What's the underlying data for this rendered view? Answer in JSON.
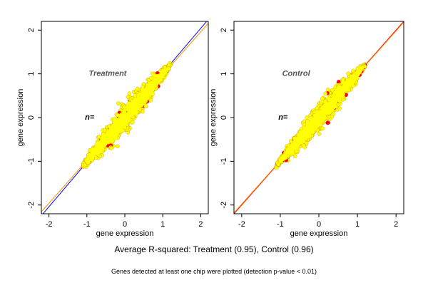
{
  "figure": {
    "main_caption": "Average R-squared: Treatment (0.95), Control (0.96)",
    "sub_caption": "Genes detected at least one chip were plotted (detection p-value < 0.01)"
  },
  "chart_data": [
    {
      "type": "scatter",
      "panel_label": "Treatment",
      "n_label": "n=",
      "xlabel": "gene expression",
      "ylabel": "gene expression",
      "xlim": [
        -2.2,
        2.2
      ],
      "ylim": [
        -2.2,
        2.2
      ],
      "x_ticks": [
        -2,
        -1,
        0,
        1,
        2
      ],
      "y_ticks": [
        -2,
        -1,
        0,
        1,
        2
      ],
      "grid": false,
      "reference_lines": [
        {
          "name": "blue line",
          "slope": 1.02,
          "intercept": 0.0,
          "color": "#0000ff"
        },
        {
          "name": "orange line",
          "slope": 0.98,
          "intercept": 0.0,
          "color": "#ff8c00"
        }
      ],
      "cloud": {
        "x_range": [
          -1.1,
          1.2
        ],
        "spread": 0.28,
        "center_point": [
          0,
          0
        ]
      },
      "series_colors": {
        "main": "#ffff00",
        "outline": "#d0a000",
        "red": "#ff0000",
        "blue": "#0000ff"
      }
    },
    {
      "type": "scatter",
      "panel_label": "Control",
      "n_label": "n=",
      "xlabel": "gene expression",
      "ylabel": "gene expression",
      "xlim": [
        -2.2,
        2.2
      ],
      "ylim": [
        -2.2,
        2.2
      ],
      "x_ticks": [
        -2,
        -1,
        0,
        1,
        2
      ],
      "y_ticks": [
        -2,
        -1,
        0,
        1,
        2
      ],
      "grid": false,
      "reference_lines": [
        {
          "name": "red line",
          "slope": 1.0,
          "intercept": 0.0,
          "color": "#ff0000"
        },
        {
          "name": "orange line",
          "slope": 0.99,
          "intercept": 0.0,
          "color": "#ff8c00"
        }
      ],
      "cloud": {
        "x_range": [
          -1.1,
          1.2
        ],
        "spread": 0.25,
        "center_point": [
          0,
          0
        ]
      },
      "series_colors": {
        "main": "#ffff00",
        "outline": "#d0a000",
        "red": "#ff0000",
        "blue": "#0000ff"
      }
    }
  ]
}
